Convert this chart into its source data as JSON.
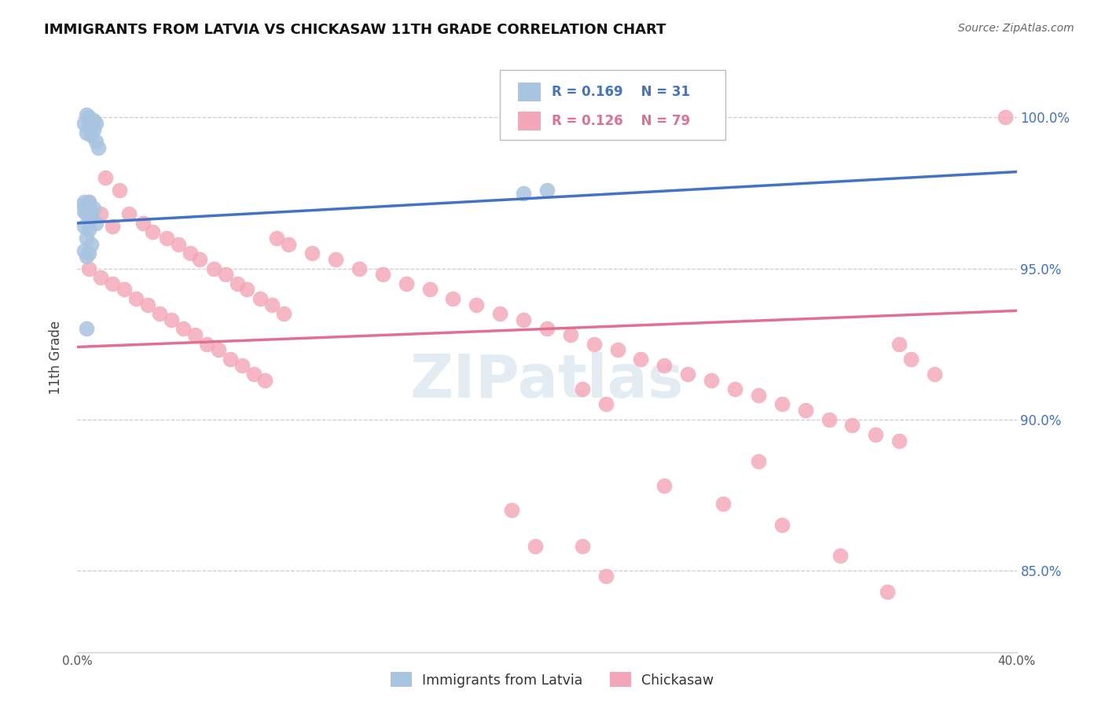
{
  "title": "IMMIGRANTS FROM LATVIA VS CHICKASAW 11TH GRADE CORRELATION CHART",
  "source": "Source: ZipAtlas.com",
  "ylabel": "11th Grade",
  "legend_r_blue": "R = 0.169",
  "legend_n_blue": "N = 31",
  "legend_r_pink": "R = 0.126",
  "legend_n_pink": "N = 79",
  "legend_label_blue": "Immigrants from Latvia",
  "legend_label_pink": "Chickasaw",
  "blue_color": "#a8c4e0",
  "pink_color": "#f4a7b9",
  "blue_line_color": "#4472C4",
  "pink_line_color": "#E07090",
  "r_text_blue_color": "#4472C4",
  "r_text_pink_color": "#E07090",
  "right_axis_color": "#4472C4",
  "xlim": [
    0.0,
    0.4
  ],
  "ylim": [
    0.823,
    1.018
  ],
  "ytick_positions": [
    0.85,
    0.9,
    0.95,
    1.0
  ],
  "ytick_labels": [
    "85.0%",
    "90.0%",
    "95.0%",
    "100.0%"
  ],
  "blue_trend_x": [
    0.0,
    0.4
  ],
  "blue_trend_y": [
    0.965,
    0.982
  ],
  "pink_trend_x": [
    0.0,
    0.4
  ],
  "pink_trend_y": [
    0.924,
    0.936
  ],
  "watermark_text": "ZIPatlas",
  "blue_x": [
    0.004,
    0.005,
    0.006,
    0.007,
    0.008,
    0.003,
    0.005,
    0.007,
    0.004,
    0.006,
    0.008,
    0.009,
    0.003,
    0.005,
    0.007,
    0.004,
    0.006,
    0.008,
    0.003,
    0.005,
    0.004,
    0.006,
    0.003,
    0.005,
    0.004,
    0.19,
    0.2,
    0.003,
    0.003,
    0.005,
    0.004
  ],
  "blue_y": [
    1.001,
    1.0,
    0.999,
    0.999,
    0.998,
    0.998,
    0.997,
    0.996,
    0.995,
    0.994,
    0.992,
    0.99,
    0.972,
    0.971,
    0.97,
    0.968,
    0.967,
    0.965,
    0.964,
    0.963,
    0.96,
    0.958,
    0.956,
    0.955,
    0.954,
    0.975,
    0.976,
    0.971,
    0.969,
    0.972,
    0.93
  ],
  "pink_x": [
    0.005,
    0.01,
    0.015,
    0.012,
    0.018,
    0.022,
    0.028,
    0.032,
    0.038,
    0.043,
    0.048,
    0.052,
    0.058,
    0.063,
    0.068,
    0.072,
    0.078,
    0.083,
    0.088,
    0.005,
    0.01,
    0.015,
    0.02,
    0.025,
    0.03,
    0.035,
    0.04,
    0.045,
    0.05,
    0.055,
    0.06,
    0.065,
    0.07,
    0.075,
    0.08,
    0.085,
    0.09,
    0.1,
    0.11,
    0.12,
    0.13,
    0.14,
    0.15,
    0.16,
    0.17,
    0.18,
    0.19,
    0.2,
    0.21,
    0.22,
    0.23,
    0.24,
    0.25,
    0.26,
    0.27,
    0.28,
    0.29,
    0.3,
    0.31,
    0.32,
    0.33,
    0.34,
    0.35,
    0.355,
    0.365,
    0.395,
    0.215,
    0.225,
    0.185,
    0.195,
    0.29,
    0.35,
    0.215,
    0.225,
    0.25,
    0.275,
    0.3,
    0.325,
    0.345
  ],
  "pink_y": [
    0.972,
    0.968,
    0.964,
    0.98,
    0.976,
    0.968,
    0.965,
    0.962,
    0.96,
    0.958,
    0.955,
    0.953,
    0.95,
    0.948,
    0.945,
    0.943,
    0.94,
    0.938,
    0.935,
    0.95,
    0.947,
    0.945,
    0.943,
    0.94,
    0.938,
    0.935,
    0.933,
    0.93,
    0.928,
    0.925,
    0.923,
    0.92,
    0.918,
    0.915,
    0.913,
    0.96,
    0.958,
    0.955,
    0.953,
    0.95,
    0.948,
    0.945,
    0.943,
    0.94,
    0.938,
    0.935,
    0.933,
    0.93,
    0.928,
    0.925,
    0.923,
    0.92,
    0.918,
    0.915,
    0.913,
    0.91,
    0.908,
    0.905,
    0.903,
    0.9,
    0.898,
    0.895,
    0.893,
    0.92,
    0.915,
    1.0,
    0.858,
    0.848,
    0.87,
    0.858,
    0.886,
    0.925,
    0.91,
    0.905,
    0.878,
    0.872,
    0.865,
    0.855,
    0.843
  ]
}
